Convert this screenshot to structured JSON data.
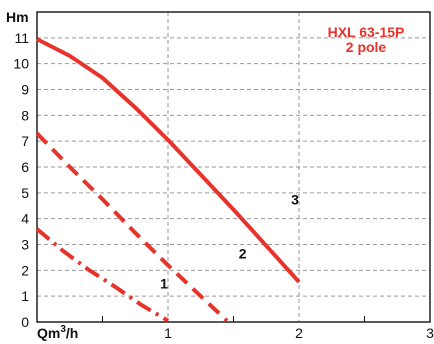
{
  "chart_data": {
    "type": "line",
    "title_line1": "HXL 63-15P",
    "title_line2": "2 pole",
    "ylabel": "Hm",
    "xlabel_prefix": "Qm",
    "xlabel_sup": "3",
    "xlabel_suffix": "/h",
    "xlim": [
      0,
      3
    ],
    "ylim": [
      0,
      12
    ],
    "x_ticks": [
      "1",
      "2",
      "3"
    ],
    "y_ticks": [
      "0",
      "1",
      "2",
      "3",
      "4",
      "5",
      "6",
      "7",
      "8",
      "9",
      "10",
      "11"
    ],
    "grid": true,
    "series": [
      {
        "name": "1",
        "color": "#e8332a",
        "style": "dashdot",
        "x": [
          0,
          0.2,
          0.4,
          0.6,
          0.8,
          1.0
        ],
        "y": [
          3.6,
          2.75,
          2.0,
          1.35,
          0.65,
          0.05
        ]
      },
      {
        "name": "2",
        "color": "#e8332a",
        "style": "dashed",
        "x": [
          0,
          0.25,
          0.5,
          0.75,
          1.0,
          1.25,
          1.45
        ],
        "y": [
          7.3,
          6.0,
          4.75,
          3.45,
          2.2,
          1.0,
          0.05
        ]
      },
      {
        "name": "3",
        "color": "#e8332a",
        "style": "solid",
        "x": [
          0,
          0.25,
          0.5,
          0.75,
          1.0,
          1.25,
          1.5,
          1.75,
          2.0
        ],
        "y": [
          10.95,
          10.3,
          9.45,
          8.3,
          7.05,
          5.7,
          4.35,
          2.95,
          1.55
        ]
      }
    ],
    "curve_labels": [
      {
        "text": "1",
        "x": 0.97,
        "y": 1.3
      },
      {
        "text": "2",
        "x": 1.57,
        "y": 2.45
      },
      {
        "text": "3",
        "x": 1.97,
        "y": 4.55
      }
    ]
  }
}
